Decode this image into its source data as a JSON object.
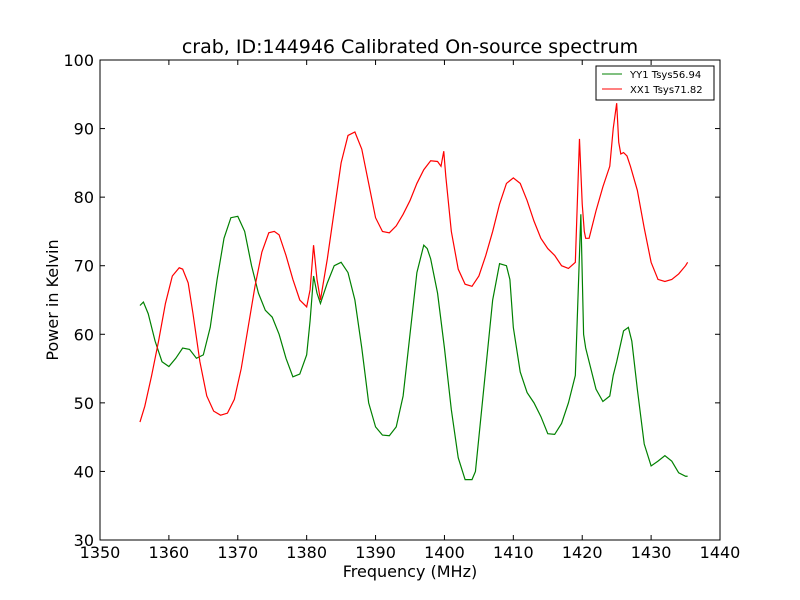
{
  "chart_data": {
    "type": "line",
    "title": "crab, ID:144946 Calibrated On-source spectrum",
    "xlabel": "Frequency (MHz)",
    "ylabel": "Power in Kelvin",
    "xlim": [
      1350,
      1440
    ],
    "ylim": [
      30,
      100
    ],
    "xticks": [
      1350,
      1360,
      1370,
      1380,
      1390,
      1400,
      1410,
      1420,
      1430,
      1440
    ],
    "yticks": [
      30,
      40,
      50,
      60,
      70,
      80,
      90,
      100
    ],
    "xtick_labels": [
      "1350",
      "1360",
      "1370",
      "1380",
      "1390",
      "1400",
      "1410",
      "1420",
      "1430",
      "1440"
    ],
    "ytick_labels": [
      "30",
      "40",
      "50",
      "60",
      "70",
      "80",
      "90",
      "100"
    ],
    "grid": false,
    "legend_position": "top-right",
    "series": [
      {
        "name": "YY1 Tsys56.94",
        "color": "#008000",
        "x": [
          1355.8,
          1356.3,
          1357,
          1358,
          1359,
          1360,
          1361,
          1362,
          1363,
          1364,
          1365,
          1366,
          1367,
          1368,
          1369,
          1370,
          1371,
          1372,
          1373,
          1374,
          1375,
          1376,
          1377,
          1378,
          1379,
          1380,
          1380.5,
          1381,
          1381.5,
          1382,
          1383,
          1384,
          1385,
          1386,
          1387,
          1388,
          1389,
          1390,
          1391,
          1392,
          1393,
          1394,
          1395,
          1396,
          1397,
          1397.5,
          1398,
          1399,
          1400,
          1401,
          1402,
          1403,
          1404,
          1404.5,
          1405,
          1406,
          1407,
          1408,
          1409,
          1409.5,
          1410,
          1411,
          1412,
          1413,
          1414,
          1415,
          1416,
          1417,
          1418,
          1419,
          1419.8,
          1420.2,
          1420.5,
          1421,
          1422,
          1423,
          1424,
          1424.5,
          1425,
          1426,
          1426.7,
          1427.2,
          1428,
          1429,
          1430,
          1431,
          1432,
          1433,
          1434,
          1435,
          1435.3
        ],
        "y": [
          64.2,
          64.7,
          63,
          59,
          56,
          55.3,
          56.5,
          58,
          57.8,
          56.5,
          57,
          61,
          68,
          74,
          77,
          77.2,
          75,
          70,
          66,
          63.5,
          62.5,
          60,
          56.5,
          53.8,
          54.2,
          57,
          62,
          68.5,
          66,
          64.5,
          67.5,
          70,
          70.5,
          69,
          65,
          58,
          50,
          46.5,
          45.3,
          45.2,
          46.5,
          51,
          60,
          69,
          73,
          72.5,
          71,
          66,
          58,
          49,
          42,
          38.8,
          38.8,
          40,
          45,
          55,
          65,
          70.3,
          70,
          68,
          61,
          54.5,
          51.5,
          50,
          48,
          45.5,
          45.4,
          47,
          50,
          54,
          77.5,
          60,
          58,
          56,
          52,
          50.2,
          51,
          54,
          56,
          60.5,
          61,
          59,
          52,
          44,
          40.8,
          41.5,
          42.3,
          41.5,
          39.8,
          39.3,
          39.3
        ]
      },
      {
        "name": "XX1 Tsys71.82",
        "color": "#ff0000",
        "x": [
          1355.8,
          1356.5,
          1357.5,
          1358.5,
          1359.5,
          1360.5,
          1361.5,
          1362,
          1362.8,
          1363.5,
          1364.5,
          1365.5,
          1366.5,
          1367.5,
          1368.5,
          1369.5,
          1370.5,
          1371.5,
          1372.5,
          1373.5,
          1374.5,
          1375.3,
          1376,
          1377,
          1378,
          1379,
          1380,
          1380.5,
          1381,
          1381.5,
          1382,
          1383,
          1384,
          1385,
          1386,
          1387,
          1388,
          1389,
          1390,
          1391,
          1392,
          1393,
          1394,
          1395,
          1396,
          1397,
          1398,
          1399,
          1399.5,
          1399.9,
          1400.2,
          1400.5,
          1401,
          1402,
          1403,
          1404,
          1405,
          1406,
          1407,
          1408,
          1409,
          1410,
          1411,
          1412,
          1413,
          1414,
          1415,
          1416,
          1417,
          1418,
          1419,
          1419.6,
          1420,
          1420.3,
          1420.5,
          1421,
          1421.5,
          1422,
          1423,
          1424,
          1424.5,
          1425,
          1425.3,
          1425.6,
          1426,
          1426.5,
          1427,
          1428,
          1429,
          1430,
          1431,
          1432,
          1433,
          1434,
          1435,
          1435.3
        ],
        "y": [
          47.2,
          49.5,
          54,
          59,
          64.5,
          68.5,
          69.7,
          69.5,
          67.5,
          63,
          56,
          51,
          48.8,
          48.2,
          48.5,
          50.5,
          55,
          61,
          67,
          72,
          74.8,
          75,
          74.5,
          71.5,
          68,
          65,
          64,
          66.5,
          73,
          68,
          65,
          71,
          78,
          85,
          89,
          89.5,
          87,
          82,
          77,
          75,
          74.8,
          75.8,
          77.5,
          79.5,
          82,
          84,
          85.3,
          85.2,
          84.5,
          86.7,
          83,
          80,
          75,
          69.5,
          67.3,
          67,
          68.5,
          71.5,
          75,
          79,
          82,
          82.8,
          82,
          79.5,
          76.5,
          74,
          72.5,
          71.5,
          70,
          69.6,
          70.5,
          88.5,
          79,
          75,
          74,
          74,
          76,
          78,
          81.5,
          84.5,
          90,
          93.7,
          88,
          86.3,
          86.5,
          86,
          84.5,
          81,
          75.5,
          70.5,
          68,
          67.7,
          68,
          68.8,
          70,
          70.5
        ]
      }
    ]
  }
}
